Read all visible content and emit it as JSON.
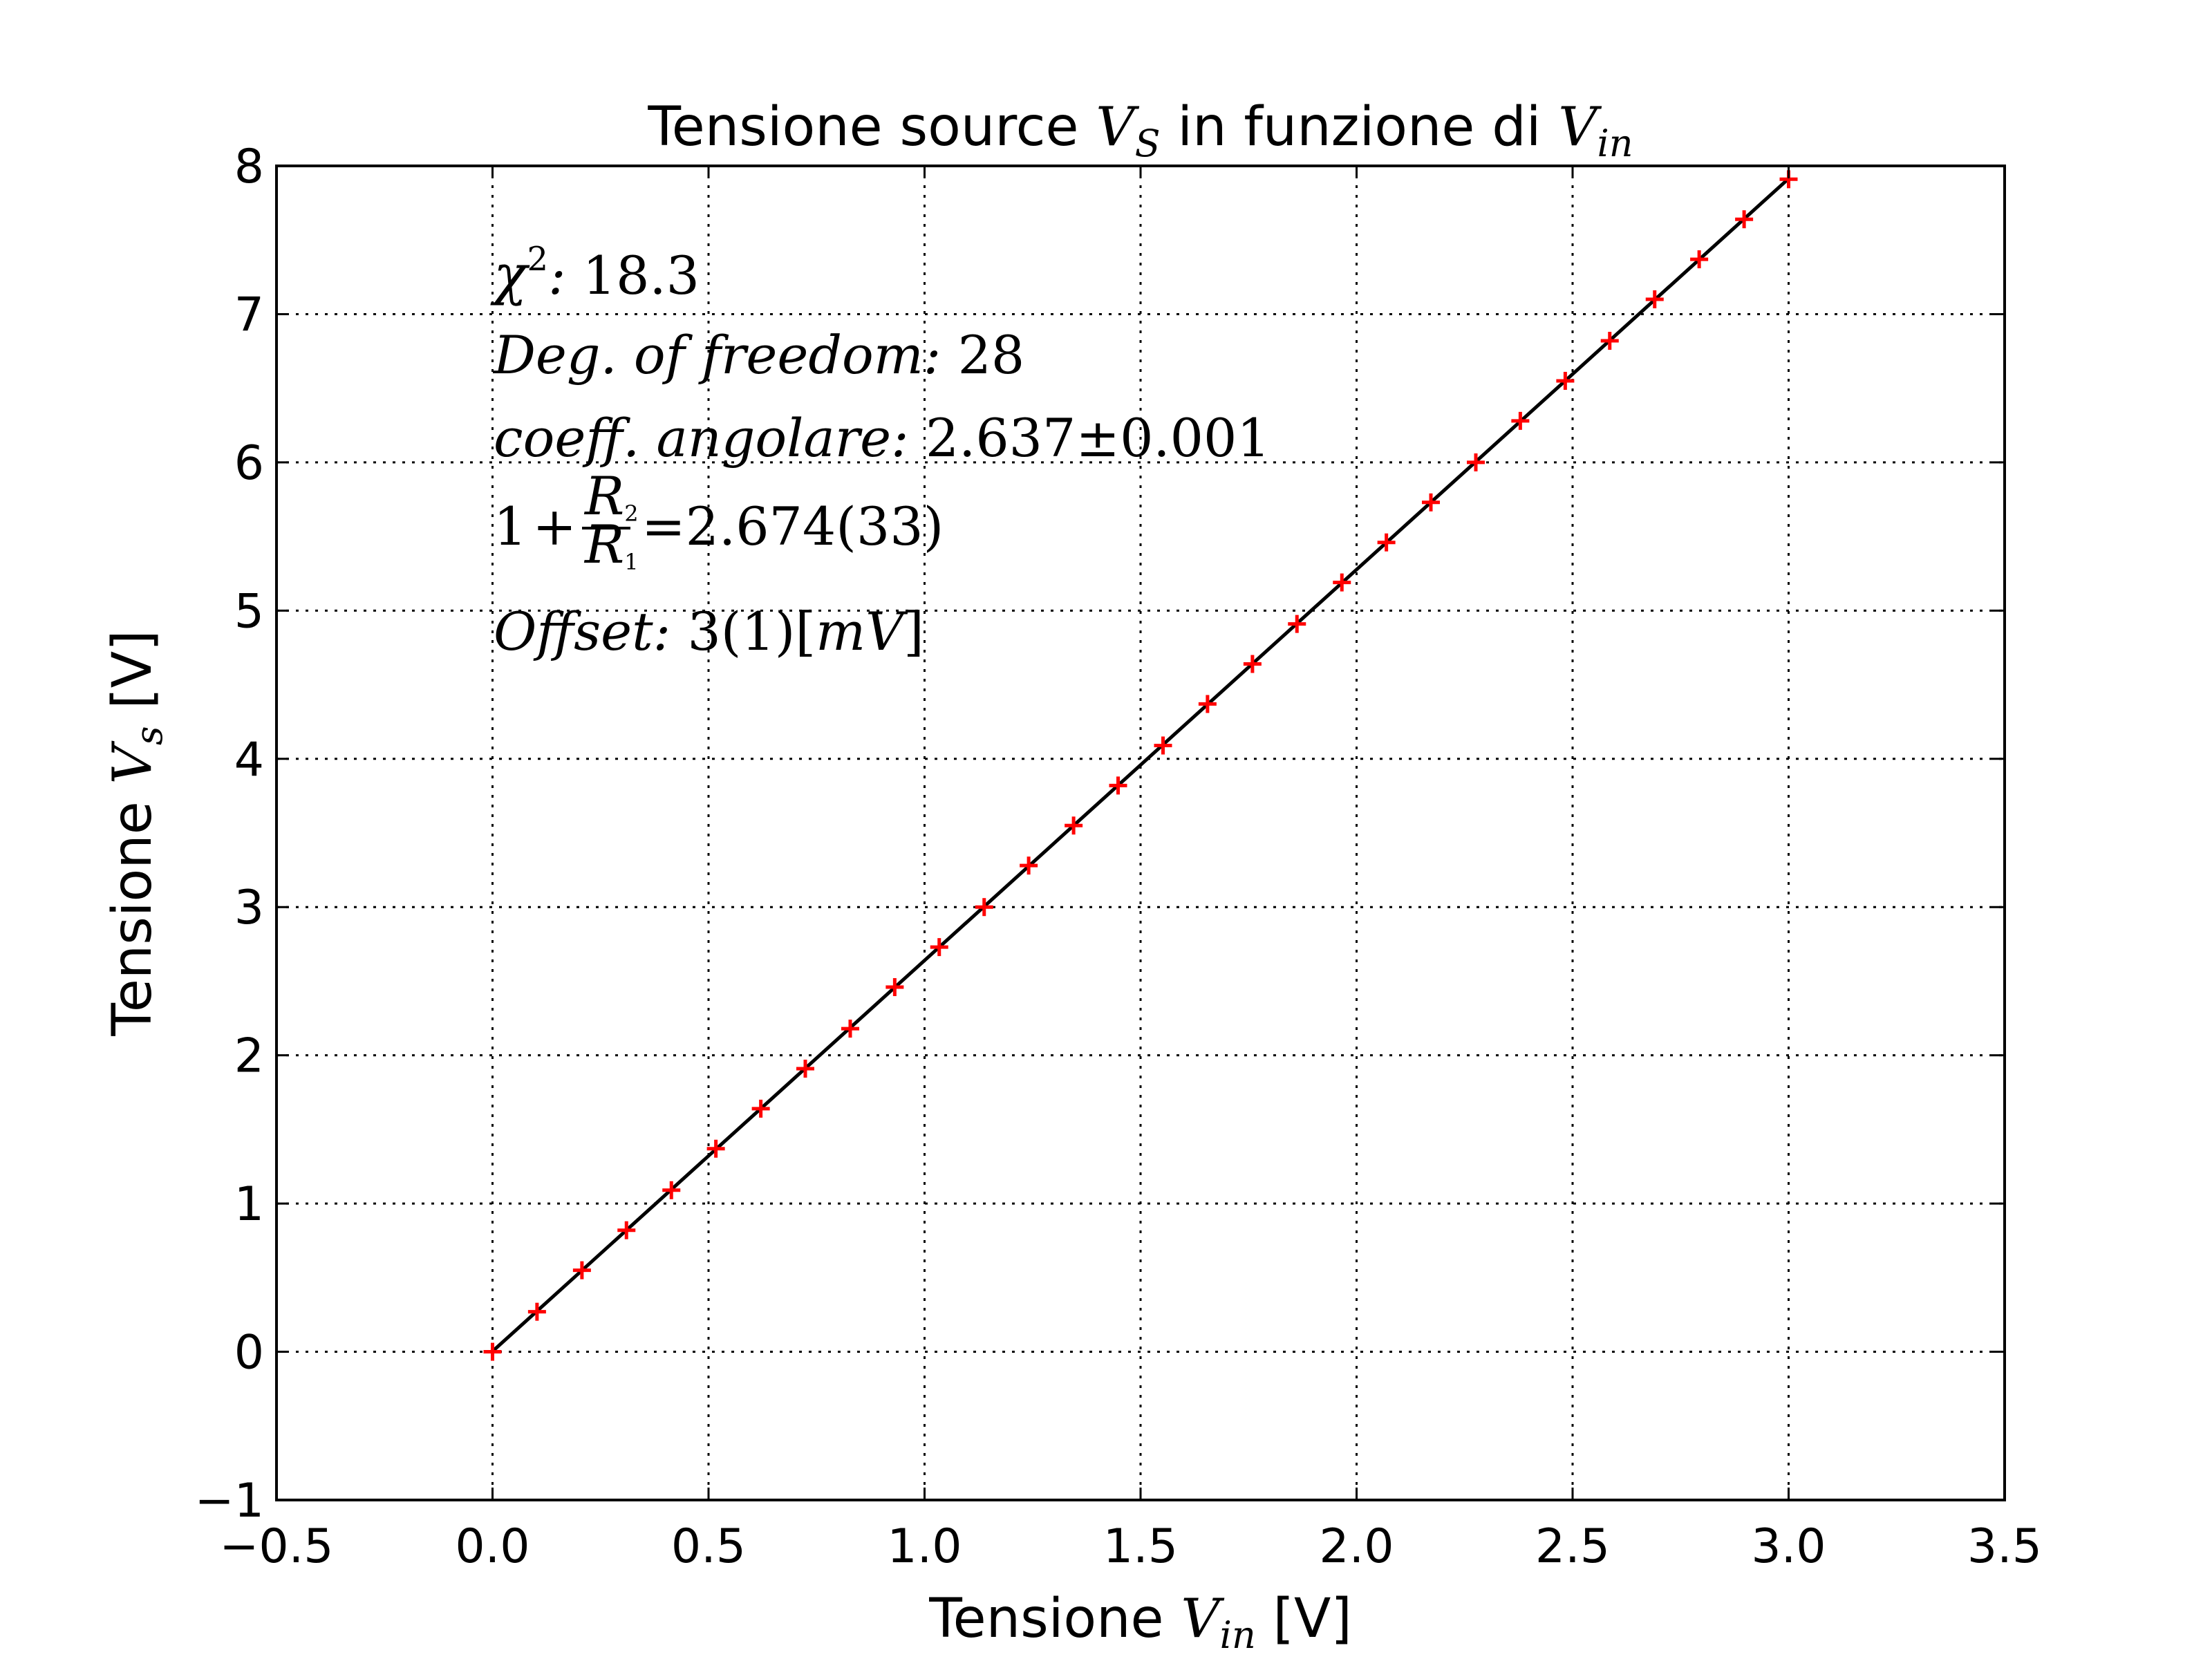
{
  "chart_data": {
    "type": "scatter",
    "title": {
      "prefix": "Tensione source ",
      "var": "V",
      "sub": "S",
      "middle": " in funzione di ",
      "var2": "V",
      "sub2": "in"
    },
    "xlabel": {
      "prefix": "Tensione ",
      "var": "V",
      "sub": "in",
      "suffix": " [V]"
    },
    "ylabel": {
      "prefix": "Tensione ",
      "var": "V",
      "sub": "s",
      "suffix": " [V]"
    },
    "xlim": [
      -0.5,
      3.5
    ],
    "ylim": [
      -1,
      8
    ],
    "xticks": [
      -0.5,
      0.0,
      0.5,
      1.0,
      1.5,
      2.0,
      2.5,
      3.0,
      3.5
    ],
    "xtick_labels": [
      "−0.5",
      "0.0",
      "0.5",
      "1.0",
      "1.5",
      "2.0",
      "2.5",
      "3.0",
      "3.5"
    ],
    "yticks": [
      -1,
      0,
      1,
      2,
      3,
      4,
      5,
      6,
      7,
      8
    ],
    "ytick_labels": [
      "−1",
      "0",
      "1",
      "2",
      "3",
      "4",
      "5",
      "6",
      "7",
      "8"
    ],
    "grid": true,
    "series": [
      {
        "marker": "+",
        "color": "#ff0000",
        "x": [
          0.0,
          0.103,
          0.207,
          0.31,
          0.414,
          0.517,
          0.621,
          0.724,
          0.828,
          0.931,
          1.034,
          1.138,
          1.241,
          1.345,
          1.448,
          1.552,
          1.655,
          1.759,
          1.862,
          1.966,
          2.069,
          2.172,
          2.276,
          2.379,
          2.483,
          2.586,
          2.69,
          2.793,
          2.897,
          3.0
        ],
        "y": [
          0.0,
          0.27,
          0.55,
          0.82,
          1.09,
          1.37,
          1.64,
          1.91,
          2.18,
          2.46,
          2.73,
          3.0,
          3.28,
          3.55,
          3.82,
          4.09,
          4.37,
          4.64,
          4.91,
          5.19,
          5.46,
          5.73,
          6.0,
          6.28,
          6.55,
          6.82,
          7.1,
          7.37,
          7.64,
          7.91
        ]
      }
    ],
    "fit_line": {
      "color": "#000000",
      "slope": 2.637,
      "intercept": 0.003,
      "x_range": [
        0.0,
        3.0
      ]
    },
    "annotations": {
      "chi2_label": "χ",
      "chi2_sup": "2",
      "chi2_sep": ": ",
      "chi2_value": "18.3",
      "dof_label": "Deg. of freedom: ",
      "dof_value": "28",
      "slope_label": "coeff. angolare: ",
      "slope_value": "2.637",
      "slope_pm": "±",
      "slope_err": "0.001",
      "ratio_prefix": "1",
      "ratio_plus": "+",
      "ratio_num": "R",
      "ratio_num_sub": "2",
      "ratio_den": "R",
      "ratio_den_sub": "1",
      "ratio_value": "=2.674(33)",
      "offset_label": "Offset: ",
      "offset_value": "3(1)[",
      "offset_unit": "mV",
      "offset_close": "]"
    }
  }
}
